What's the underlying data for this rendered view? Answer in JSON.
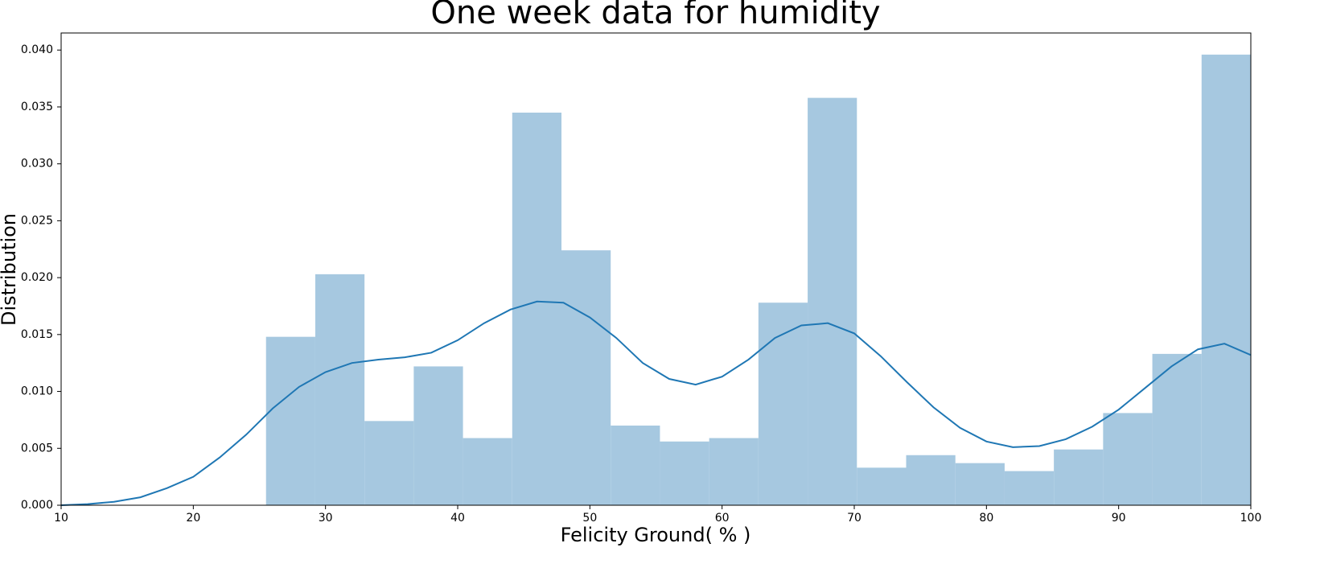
{
  "chart_data": {
    "type": "histogram",
    "title": "One week data for humidity",
    "x_label": "Felicity Ground( % )",
    "y_label": "Distribution",
    "bins": [
      25.5,
      29.225,
      32.95,
      36.675,
      40.4,
      44.125,
      47.85,
      51.575,
      55.3,
      59.025,
      62.75,
      66.475,
      70.2,
      73.925,
      77.65,
      81.375,
      85.1,
      88.825,
      92.55,
      96.275,
      100
    ],
    "values": [
      0.0148,
      0.0203,
      0.0074,
      0.0122,
      0.0059,
      0.0345,
      0.0224,
      0.007,
      0.0056,
      0.0059,
      0.0178,
      0.0358,
      0.0033,
      0.0044,
      0.0037,
      0.003,
      0.0049,
      0.0081,
      0.0133,
      0.0396
    ],
    "color": "#a6c8e0",
    "line": {
      "color": "#1f77b4",
      "x": [
        10,
        12,
        14,
        16,
        18,
        20,
        22,
        24,
        26,
        28,
        30,
        32,
        34,
        36,
        38,
        40,
        42,
        44,
        46,
        48,
        50,
        52,
        54,
        56,
        58,
        60,
        62,
        64,
        66,
        68,
        70,
        72,
        74,
        76,
        78,
        80,
        82,
        84,
        86,
        88,
        90,
        92,
        94,
        96,
        98,
        100
      ],
      "values": [
        0.0,
        0.0001,
        0.0003,
        0.0007,
        0.0015,
        0.0025,
        0.0042,
        0.0062,
        0.0085,
        0.0104,
        0.0117,
        0.0125,
        0.0128,
        0.013,
        0.0134,
        0.0145,
        0.016,
        0.0172,
        0.0179,
        0.0178,
        0.0165,
        0.0147,
        0.0125,
        0.0111,
        0.0106,
        0.0113,
        0.0128,
        0.0147,
        0.0158,
        0.016,
        0.0151,
        0.0131,
        0.0108,
        0.0086,
        0.0068,
        0.0056,
        0.0051,
        0.0052,
        0.0058,
        0.0069,
        0.0084,
        0.0103,
        0.0122,
        0.0137,
        0.0142,
        0.0132
      ]
    },
    "xlim": [
      10,
      100
    ],
    "xticks": [
      10,
      20,
      30,
      40,
      50,
      60,
      70,
      80,
      90,
      100
    ],
    "ylim": [
      0,
      0.0415
    ],
    "yticks": [
      {
        "value": 0,
        "label": "0.000"
      },
      {
        "value": 0.005,
        "label": "0.005"
      },
      {
        "value": 0.01,
        "label": "0.010"
      },
      {
        "value": 0.015,
        "label": "0.015"
      },
      {
        "value": 0.02,
        "label": "0.020"
      },
      {
        "value": 0.025,
        "label": "0.025"
      },
      {
        "value": 0.03,
        "label": "0.030"
      },
      {
        "value": 0.035,
        "label": "0.035"
      },
      {
        "value": 0.04,
        "label": "0.040"
      }
    ]
  }
}
